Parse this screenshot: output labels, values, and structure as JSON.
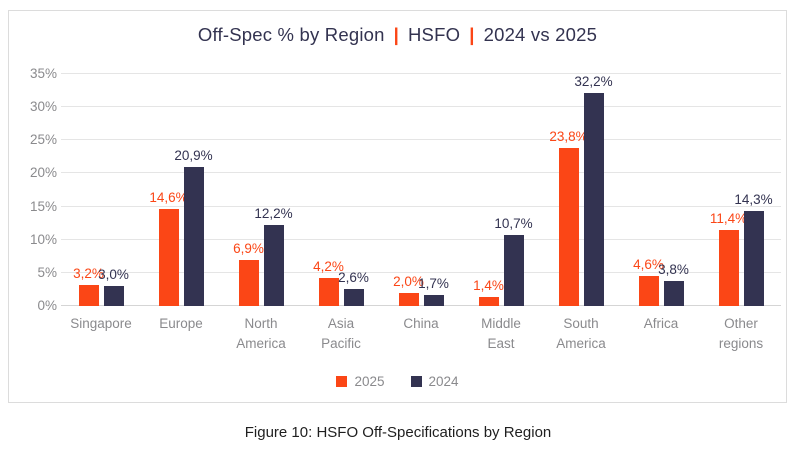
{
  "title": {
    "part1": "Off-Spec % by Region",
    "separator": "|",
    "part2": "HSFO",
    "part3": "2024 vs 2025"
  },
  "caption": "Figure 10: HSFO Off-Specifications by Region",
  "colors": {
    "orange_2025": "#fb4616",
    "navy_2024": "#333351",
    "title_text": "#333350",
    "axis_text": "#8a8a8d",
    "gridline": "#e5e5e5",
    "box_border": "#dcdcdc"
  },
  "chart_data": {
    "type": "bar",
    "title": "Off-Spec % by Region | HSFO | 2024 vs 2025",
    "categories": [
      "Singapore",
      "Europe",
      "North America",
      "Asia Pacific",
      "China",
      "Middle East",
      "South America",
      "Africa",
      "Other regions"
    ],
    "series": [
      {
        "name": "2025",
        "color": "#fb4616",
        "values": [
          3.2,
          14.6,
          6.9,
          4.2,
          2.0,
          1.4,
          23.8,
          4.6,
          11.4
        ],
        "labels": [
          "3,2%",
          "14,6%",
          "6,9%",
          "4,2%",
          "2,0%",
          "1,4%",
          "23,8%",
          "4,6%",
          "11,4%"
        ]
      },
      {
        "name": "2024",
        "color": "#333351",
        "values": [
          3.0,
          20.9,
          12.2,
          2.6,
          1.7,
          10.7,
          32.2,
          3.8,
          14.3
        ],
        "labels": [
          "3,0%",
          "20,9%",
          "12,2%",
          "2,6%",
          "1,7%",
          "10,7%",
          "32,2%",
          "3,8%",
          "14,3%"
        ]
      }
    ],
    "xlabel": "",
    "ylabel": "",
    "ylim": [
      0,
      35
    ],
    "ytick_step": 5,
    "yticks": [
      "0%",
      "5%",
      "10%",
      "15%",
      "20%",
      "25%",
      "30%",
      "35%"
    ],
    "grid": true,
    "legend_position": "bottom"
  }
}
